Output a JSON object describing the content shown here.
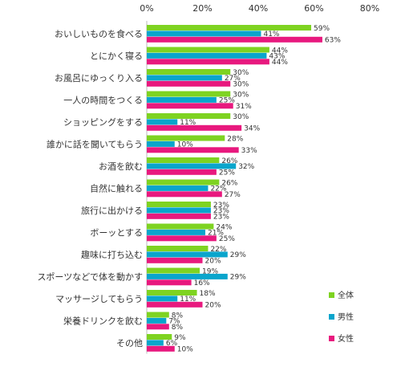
{
  "chart_data": {
    "type": "bar",
    "orientation": "horizontal",
    "title": "",
    "xlabel": "",
    "ylabel": "",
    "xlim": [
      0,
      80
    ],
    "ticks": [
      "0%",
      "20%",
      "40%",
      "60%",
      "80%"
    ],
    "grid": false,
    "legend_position": "bottom-right",
    "categories": [
      "おいしいものを食べる",
      "とにかく寝る",
      "お風呂にゆっくり入る",
      "一人の時間をつくる",
      "ショッピングをする",
      "誰かに話を聞いてもらう",
      "お酒を飲む",
      "自然に触れる",
      "旅行に出かける",
      "ボーッとする",
      "趣味に打ち込む",
      "スポーツなどで体を動かす",
      "マッサージしてもらう",
      "栄養ドリンクを飲む",
      "その他"
    ],
    "series": [
      {
        "name": "全体",
        "color": "#7ed321",
        "values": [
          59,
          44,
          30,
          30,
          30,
          28,
          26,
          26,
          23,
          24,
          22,
          19,
          18,
          8,
          9
        ]
      },
      {
        "name": "男性",
        "color": "#0aa5cc",
        "values": [
          41,
          43,
          27,
          25,
          11,
          10,
          32,
          22,
          23,
          21,
          29,
          29,
          11,
          7,
          6
        ]
      },
      {
        "name": "女性",
        "color": "#e8197e",
        "values": [
          63,
          44,
          30,
          31,
          34,
          33,
          25,
          27,
          23,
          25,
          20,
          16,
          20,
          8,
          10
        ]
      }
    ]
  }
}
